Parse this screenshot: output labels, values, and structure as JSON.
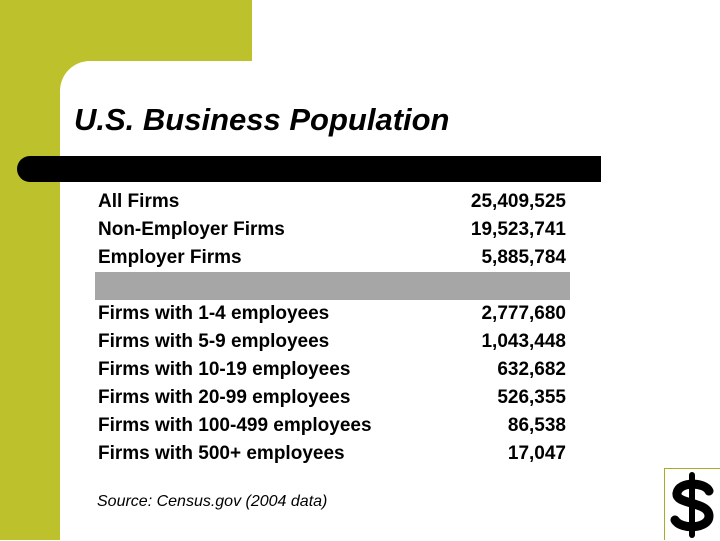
{
  "title": "U.S. Business Population",
  "summary_rows": [
    {
      "label": "All Firms",
      "value": "25,409,525"
    },
    {
      "label": "Non-Employer Firms",
      "value": "19,523,741"
    },
    {
      "label": "Employer Firms",
      "value": "5,885,784"
    }
  ],
  "size_rows": [
    {
      "label": "Firms with 1-4 employees",
      "value": "2,777,680"
    },
    {
      "label": "Firms with 5-9 employees",
      "value": "1,043,448"
    },
    {
      "label": "Firms with 10-19 employees",
      "value": "632,682"
    },
    {
      "label": "Firms with 20-99 employees",
      "value": "526,355"
    },
    {
      "label": "Firms with 100-499 employees",
      "value": "86,538"
    },
    {
      "label": "Firms with 500+ employees",
      "value": "17,047"
    }
  ],
  "source": "Source:  Census.gov (2004 data)",
  "colors": {
    "accent": "#bcc12c",
    "band": "#a6a6a6",
    "text": "#000000"
  },
  "icons": [
    "dollar-sign-icon"
  ]
}
